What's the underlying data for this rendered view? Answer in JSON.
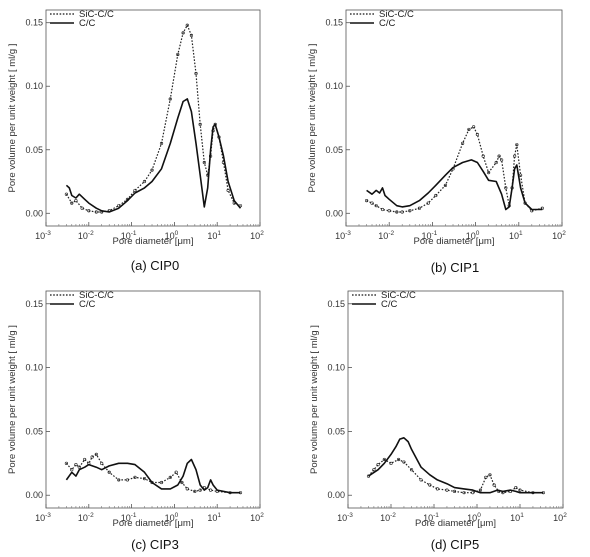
{
  "chart_data": [
    {
      "type": "line",
      "caption": "(a) CIP0",
      "xlabel": "Pore diameter [μm]",
      "ylabel": "Pore volume per unit weight [ ml/g ]",
      "xscale": "log",
      "xlim": [
        0.001,
        100
      ],
      "ylim": [
        -0.01,
        0.16
      ],
      "yticks": [
        0.0,
        0.05,
        0.1,
        0.15
      ],
      "xticks": [
        0.001,
        0.01,
        0.1,
        1,
        10,
        100
      ],
      "legend_position": "top-left",
      "grid": false,
      "series": [
        {
          "name": "SiC-C/C",
          "style": "dotted",
          "points": [
            [
              0.003,
              0.015
            ],
            [
              0.004,
              0.008
            ],
            [
              0.005,
              0.01
            ],
            [
              0.007,
              0.004
            ],
            [
              0.01,
              0.002
            ],
            [
              0.015,
              0.001
            ],
            [
              0.02,
              0.001
            ],
            [
              0.03,
              0.002
            ],
            [
              0.05,
              0.006
            ],
            [
              0.08,
              0.011
            ],
            [
              0.12,
              0.018
            ],
            [
              0.2,
              0.025
            ],
            [
              0.3,
              0.034
            ],
            [
              0.5,
              0.055
            ],
            [
              0.8,
              0.09
            ],
            [
              1.2,
              0.125
            ],
            [
              1.6,
              0.142
            ],
            [
              2.0,
              0.148
            ],
            [
              2.5,
              0.14
            ],
            [
              3.2,
              0.11
            ],
            [
              4.0,
              0.07
            ],
            [
              5.0,
              0.04
            ],
            [
              6.0,
              0.03
            ],
            [
              7.0,
              0.045
            ],
            [
              8.0,
              0.065
            ],
            [
              9.0,
              0.07
            ],
            [
              11,
              0.06
            ],
            [
              14,
              0.04
            ],
            [
              18,
              0.018
            ],
            [
              25,
              0.008
            ],
            [
              35,
              0.006
            ]
          ]
        },
        {
          "name": "C/C",
          "style": "solid",
          "points": [
            [
              0.003,
              0.022
            ],
            [
              0.0035,
              0.02
            ],
            [
              0.004,
              0.014
            ],
            [
              0.005,
              0.012
            ],
            [
              0.006,
              0.015
            ],
            [
              0.008,
              0.011
            ],
            [
              0.01,
              0.008
            ],
            [
              0.015,
              0.004
            ],
            [
              0.02,
              0.002
            ],
            [
              0.03,
              0.001
            ],
            [
              0.05,
              0.004
            ],
            [
              0.08,
              0.01
            ],
            [
              0.12,
              0.016
            ],
            [
              0.2,
              0.02
            ],
            [
              0.3,
              0.025
            ],
            [
              0.5,
              0.035
            ],
            [
              0.8,
              0.055
            ],
            [
              1.2,
              0.075
            ],
            [
              1.6,
              0.088
            ],
            [
              2.0,
              0.09
            ],
            [
              2.5,
              0.08
            ],
            [
              3.2,
              0.055
            ],
            [
              4.0,
              0.03
            ],
            [
              5.0,
              0.005
            ],
            [
              6.0,
              0.02
            ],
            [
              7.0,
              0.05
            ],
            [
              8.0,
              0.068
            ],
            [
              9.0,
              0.07
            ],
            [
              11,
              0.06
            ],
            [
              14,
              0.045
            ],
            [
              18,
              0.025
            ],
            [
              25,
              0.01
            ],
            [
              35,
              0.004
            ]
          ]
        }
      ]
    },
    {
      "type": "line",
      "caption": "(b) CIP1",
      "xlabel": "Pore diameter [μm]",
      "ylabel": "Pore volume per unit weight [ ml/g ]",
      "xscale": "log",
      "xlim": [
        0.001,
        100
      ],
      "ylim": [
        -0.01,
        0.16
      ],
      "yticks": [
        0.0,
        0.05,
        0.1,
        0.15
      ],
      "xticks": [
        0.001,
        0.01,
        0.1,
        1,
        10,
        100
      ],
      "legend_position": "top-left",
      "grid": false,
      "series": [
        {
          "name": "SiC-C/C",
          "style": "dotted",
          "points": [
            [
              0.003,
              0.01
            ],
            [
              0.004,
              0.008
            ],
            [
              0.005,
              0.006
            ],
            [
              0.007,
              0.003
            ],
            [
              0.01,
              0.002
            ],
            [
              0.015,
              0.001
            ],
            [
              0.02,
              0.001
            ],
            [
              0.03,
              0.002
            ],
            [
              0.05,
              0.004
            ],
            [
              0.08,
              0.008
            ],
            [
              0.12,
              0.014
            ],
            [
              0.2,
              0.022
            ],
            [
              0.3,
              0.035
            ],
            [
              0.5,
              0.055
            ],
            [
              0.7,
              0.066
            ],
            [
              0.9,
              0.068
            ],
            [
              1.1,
              0.062
            ],
            [
              1.5,
              0.045
            ],
            [
              2.0,
              0.032
            ],
            [
              3.0,
              0.04
            ],
            [
              3.5,
              0.045
            ],
            [
              4.0,
              0.042
            ],
            [
              5.0,
              0.02
            ],
            [
              6.0,
              0.006
            ],
            [
              7.0,
              0.02
            ],
            [
              8.0,
              0.045
            ],
            [
              9.0,
              0.054
            ],
            [
              11,
              0.03
            ],
            [
              14,
              0.008
            ],
            [
              20,
              0.002
            ],
            [
              35,
              0.004
            ]
          ]
        },
        {
          "name": "C/C",
          "style": "solid",
          "points": [
            [
              0.003,
              0.018
            ],
            [
              0.004,
              0.015
            ],
            [
              0.005,
              0.018
            ],
            [
              0.006,
              0.016
            ],
            [
              0.007,
              0.02
            ],
            [
              0.008,
              0.014
            ],
            [
              0.01,
              0.011
            ],
            [
              0.015,
              0.006
            ],
            [
              0.02,
              0.005
            ],
            [
              0.03,
              0.006
            ],
            [
              0.05,
              0.01
            ],
            [
              0.08,
              0.016
            ],
            [
              0.12,
              0.022
            ],
            [
              0.2,
              0.03
            ],
            [
              0.3,
              0.036
            ],
            [
              0.5,
              0.04
            ],
            [
              0.8,
              0.042
            ],
            [
              1.1,
              0.04
            ],
            [
              1.5,
              0.033
            ],
            [
              2.0,
              0.026
            ],
            [
              3.0,
              0.025
            ],
            [
              4.0,
              0.015
            ],
            [
              5.0,
              0.003
            ],
            [
              6.0,
              0.005
            ],
            [
              7.0,
              0.02
            ],
            [
              8.0,
              0.035
            ],
            [
              9.0,
              0.038
            ],
            [
              11,
              0.02
            ],
            [
              14,
              0.008
            ],
            [
              20,
              0.003
            ],
            [
              35,
              0.003
            ]
          ]
        }
      ]
    },
    {
      "type": "line",
      "caption": "(c) CIP3",
      "xlabel": "Pore diameter [μm]",
      "ylabel": "Pore volume per unit weight [ ml/g ]",
      "xscale": "log",
      "xlim": [
        0.001,
        100
      ],
      "ylim": [
        -0.01,
        0.16
      ],
      "yticks": [
        0.0,
        0.05,
        0.1,
        0.15
      ],
      "xticks": [
        0.001,
        0.01,
        0.1,
        1,
        10,
        100
      ],
      "legend_position": "top-left",
      "grid": false,
      "series": [
        {
          "name": "SiC-C/C",
          "style": "dotted",
          "points": [
            [
              0.003,
              0.025
            ],
            [
              0.004,
              0.02
            ],
            [
              0.005,
              0.024
            ],
            [
              0.006,
              0.022
            ],
            [
              0.008,
              0.028
            ],
            [
              0.01,
              0.025
            ],
            [
              0.012,
              0.03
            ],
            [
              0.015,
              0.032
            ],
            [
              0.02,
              0.025
            ],
            [
              0.03,
              0.018
            ],
            [
              0.05,
              0.012
            ],
            [
              0.08,
              0.012
            ],
            [
              0.12,
              0.014
            ],
            [
              0.2,
              0.013
            ],
            [
              0.3,
              0.01
            ],
            [
              0.5,
              0.01
            ],
            [
              0.8,
              0.014
            ],
            [
              1.1,
              0.018
            ],
            [
              1.5,
              0.01
            ],
            [
              2.0,
              0.005
            ],
            [
              3.0,
              0.003
            ],
            [
              4.0,
              0.004
            ],
            [
              5.0,
              0.006
            ],
            [
              7.0,
              0.004
            ],
            [
              10,
              0.003
            ],
            [
              20,
              0.002
            ],
            [
              35,
              0.002
            ]
          ]
        },
        {
          "name": "C/C",
          "style": "solid",
          "points": [
            [
              0.003,
              0.012
            ],
            [
              0.004,
              0.018
            ],
            [
              0.005,
              0.015
            ],
            [
              0.006,
              0.02
            ],
            [
              0.008,
              0.022
            ],
            [
              0.01,
              0.024
            ],
            [
              0.015,
              0.022
            ],
            [
              0.02,
              0.02
            ],
            [
              0.03,
              0.023
            ],
            [
              0.05,
              0.025
            ],
            [
              0.08,
              0.025
            ],
            [
              0.12,
              0.024
            ],
            [
              0.2,
              0.018
            ],
            [
              0.3,
              0.01
            ],
            [
              0.5,
              0.005
            ],
            [
              0.8,
              0.005
            ],
            [
              1.2,
              0.008
            ],
            [
              1.6,
              0.015
            ],
            [
              2.0,
              0.025
            ],
            [
              2.5,
              0.028
            ],
            [
              3.2,
              0.02
            ],
            [
              4.0,
              0.008
            ],
            [
              5.0,
              0.004
            ],
            [
              6.0,
              0.006
            ],
            [
              7.0,
              0.012
            ],
            [
              8.0,
              0.008
            ],
            [
              10,
              0.004
            ],
            [
              20,
              0.002
            ],
            [
              35,
              0.002
            ]
          ]
        }
      ]
    },
    {
      "type": "line",
      "caption": "(d) CIP5",
      "xlabel": "Pore diameter [μm]",
      "ylabel": "Pore volume per unit weight [ ml/g ]",
      "xscale": "log",
      "xlim": [
        0.001,
        100
      ],
      "ylim": [
        -0.01,
        0.16
      ],
      "yticks": [
        0.0,
        0.05,
        0.1,
        0.15
      ],
      "xticks": [
        0.001,
        0.01,
        0.1,
        1,
        10,
        100
      ],
      "legend_position": "top-left",
      "grid": false,
      "series": [
        {
          "name": "SiC-C/C",
          "style": "dotted",
          "points": [
            [
              0.003,
              0.015
            ],
            [
              0.004,
              0.02
            ],
            [
              0.005,
              0.024
            ],
            [
              0.007,
              0.028
            ],
            [
              0.01,
              0.025
            ],
            [
              0.015,
              0.028
            ],
            [
              0.02,
              0.026
            ],
            [
              0.03,
              0.02
            ],
            [
              0.05,
              0.012
            ],
            [
              0.08,
              0.008
            ],
            [
              0.12,
              0.005
            ],
            [
              0.2,
              0.004
            ],
            [
              0.3,
              0.003
            ],
            [
              0.5,
              0.002
            ],
            [
              0.8,
              0.002
            ],
            [
              1.2,
              0.004
            ],
            [
              1.6,
              0.014
            ],
            [
              2.0,
              0.016
            ],
            [
              2.5,
              0.008
            ],
            [
              3.2,
              0.003
            ],
            [
              4.0,
              0.002
            ],
            [
              6.0,
              0.003
            ],
            [
              8.0,
              0.006
            ],
            [
              10,
              0.004
            ],
            [
              20,
              0.002
            ],
            [
              35,
              0.002
            ]
          ]
        },
        {
          "name": "C/C",
          "style": "solid",
          "points": [
            [
              0.003,
              0.015
            ],
            [
              0.005,
              0.02
            ],
            [
              0.007,
              0.025
            ],
            [
              0.01,
              0.032
            ],
            [
              0.013,
              0.038
            ],
            [
              0.016,
              0.044
            ],
            [
              0.02,
              0.045
            ],
            [
              0.025,
              0.042
            ],
            [
              0.03,
              0.036
            ],
            [
              0.05,
              0.022
            ],
            [
              0.08,
              0.016
            ],
            [
              0.12,
              0.012
            ],
            [
              0.2,
              0.009
            ],
            [
              0.3,
              0.006
            ],
            [
              0.5,
              0.005
            ],
            [
              0.8,
              0.004
            ],
            [
              1.2,
              0.002
            ],
            [
              2.0,
              0.002
            ],
            [
              3.0,
              0.004
            ],
            [
              4.0,
              0.003
            ],
            [
              6.0,
              0.004
            ],
            [
              8.0,
              0.003
            ],
            [
              10,
              0.002
            ],
            [
              20,
              0.002
            ],
            [
              35,
              0.002
            ]
          ]
        }
      ]
    }
  ]
}
